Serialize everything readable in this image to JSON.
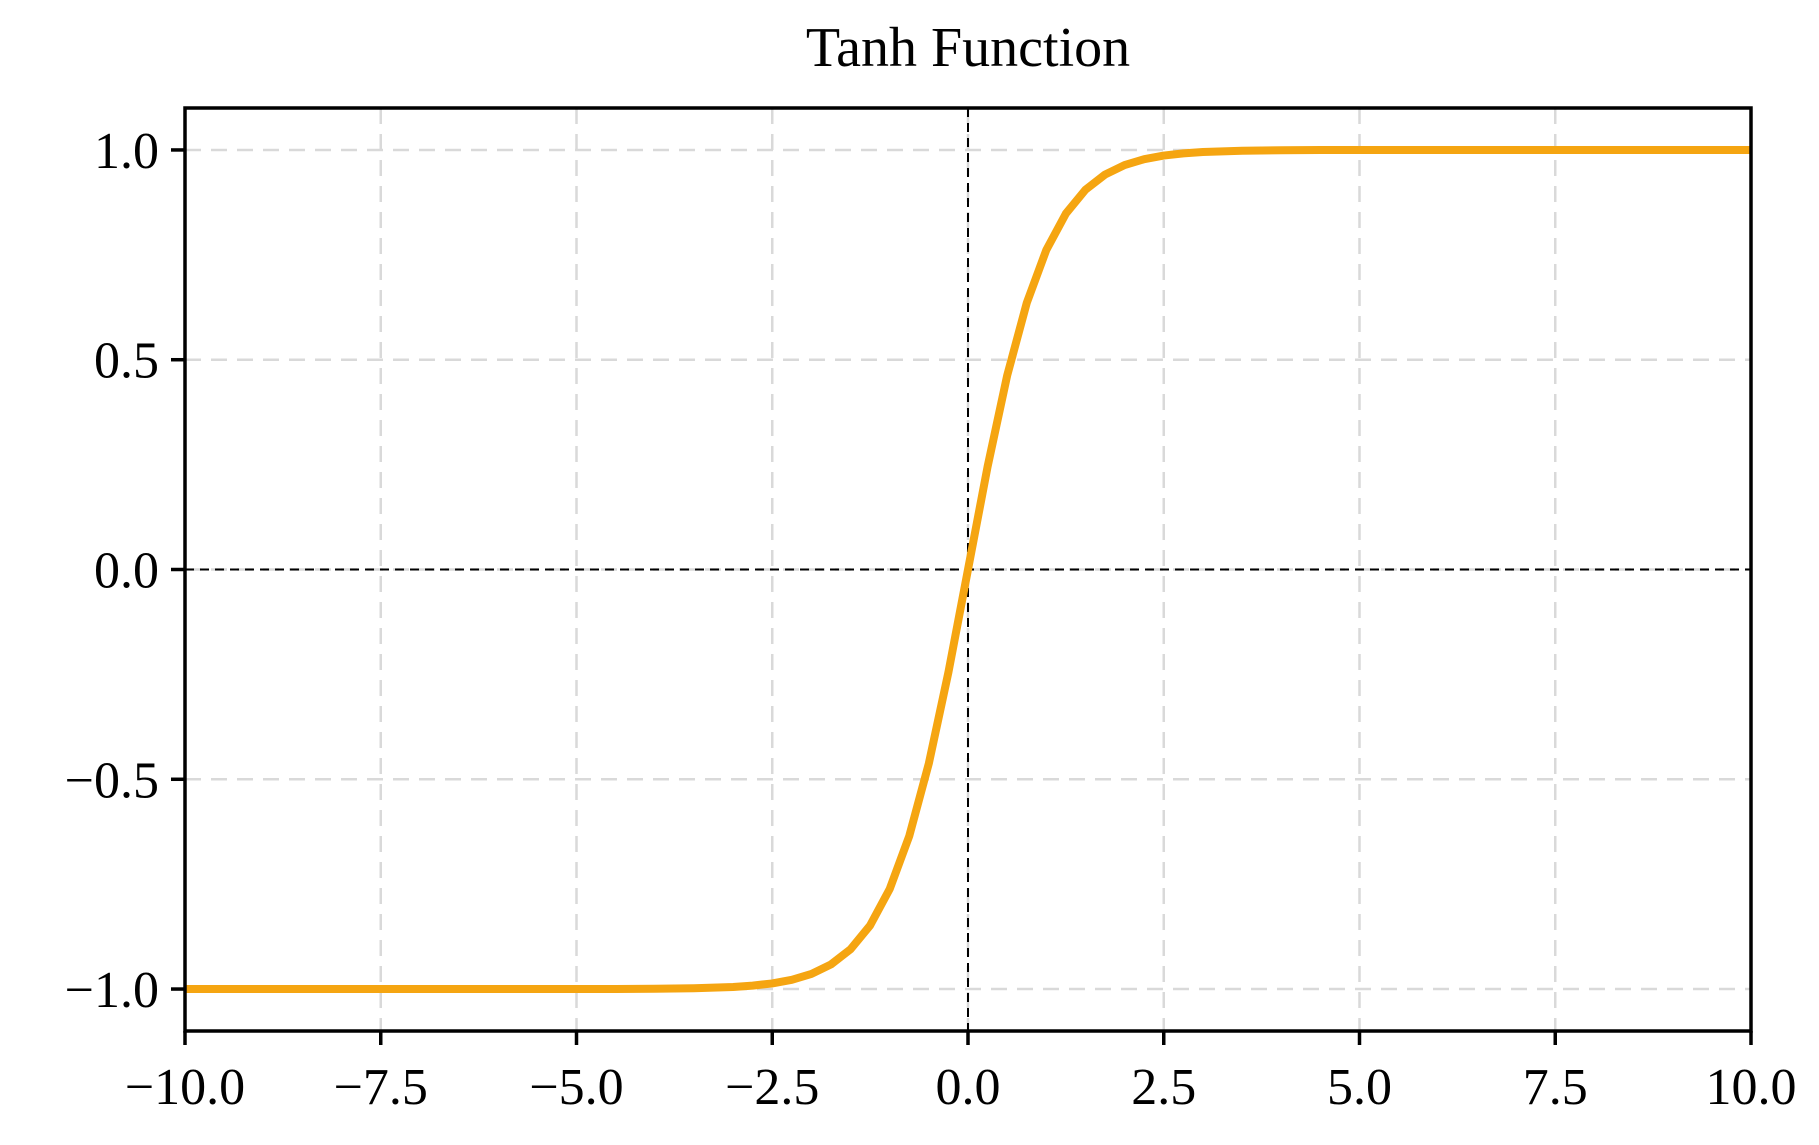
{
  "chart_data": {
    "type": "line",
    "title": "Tanh Function",
    "xlabel": "",
    "ylabel": "",
    "xlim": [
      -10,
      10
    ],
    "ylim": [
      -1.1,
      1.1
    ],
    "x_ticks": [
      -10,
      -7.5,
      -5,
      -2.5,
      0,
      2.5,
      5,
      7.5,
      10
    ],
    "x_tick_labels": [
      "−10.0",
      "−7.5",
      "−5.0",
      "−2.5",
      "0.0",
      "2.5",
      "5.0",
      "7.5",
      "10.0"
    ],
    "y_ticks": [
      -1,
      -0.5,
      0,
      0.5,
      1
    ],
    "y_tick_labels": [
      "−1.0",
      "−0.5",
      "0.0",
      "0.5",
      "1.0"
    ],
    "grid": true,
    "reference_lines": {
      "x": 0,
      "y": 0,
      "color": "#000000",
      "style": "dashed"
    },
    "series": [
      {
        "color": "#f5a511",
        "x": [
          -10,
          -9,
          -8,
          -7,
          -6,
          -5,
          -4.5,
          -4,
          -3.5,
          -3,
          -2.75,
          -2.5,
          -2.25,
          -2,
          -1.75,
          -1.5,
          -1.25,
          -1,
          -0.75,
          -0.5,
          -0.25,
          0,
          0.25,
          0.5,
          0.75,
          1,
          1.25,
          1.5,
          1.75,
          2,
          2.25,
          2.5,
          2.75,
          3,
          3.5,
          4,
          4.5,
          5,
          6,
          7,
          8,
          9,
          10
        ],
        "y": [
          -1.0,
          -1.0,
          -1.0,
          -1.0,
          -1.0,
          -0.9999,
          -0.9998,
          -0.9993,
          -0.9982,
          -0.9951,
          -0.9918,
          -0.9866,
          -0.978,
          -0.964,
          -0.9414,
          -0.9051,
          -0.8483,
          -0.7616,
          -0.6351,
          -0.4621,
          -0.2449,
          0.0,
          0.2449,
          0.4621,
          0.6351,
          0.7616,
          0.8483,
          0.9051,
          0.9414,
          0.964,
          0.978,
          0.9866,
          0.9918,
          0.9951,
          0.9982,
          0.9993,
          0.9998,
          0.9999,
          1.0,
          1.0,
          1.0,
          1.0,
          1.0
        ]
      }
    ]
  }
}
